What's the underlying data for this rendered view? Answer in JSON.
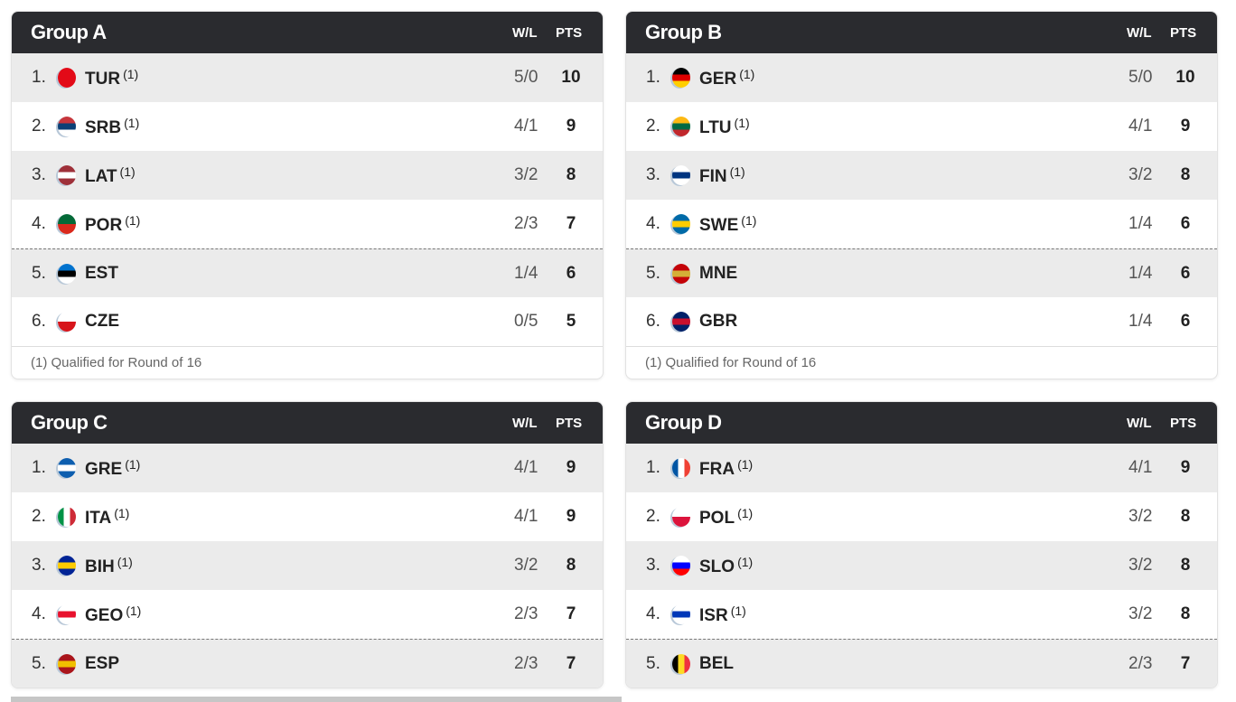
{
  "groups": [
    {
      "title": "Group A",
      "wl_header": "W/L",
      "pts_header": "PTS",
      "footnote": "(1)  Qualified for Round of 16",
      "cut_after": 4,
      "rows": [
        {
          "rank": "1.",
          "code": "TUR",
          "mark": "(1)",
          "wl": "5/0",
          "pts": "10",
          "flag": [
            "#e30a17",
            "#e30a17"
          ]
        },
        {
          "rank": "2.",
          "code": "SRB",
          "mark": "(1)",
          "wl": "4/1",
          "pts": "9",
          "flag": [
            "#c6363c",
            "#0c4076",
            "#fff"
          ]
        },
        {
          "rank": "3.",
          "code": "LAT",
          "mark": "(1)",
          "wl": "3/2",
          "pts": "8",
          "flag": [
            "#9e3039",
            "#fff",
            "#9e3039"
          ]
        },
        {
          "rank": "4.",
          "code": "POR",
          "mark": "(1)",
          "wl": "2/3",
          "pts": "7",
          "flag": [
            "#046a38",
            "#da291c"
          ]
        },
        {
          "rank": "5.",
          "code": "EST",
          "mark": "",
          "wl": "1/4",
          "pts": "6",
          "flag": [
            "#0072ce",
            "#000",
            "#fff"
          ]
        },
        {
          "rank": "6.",
          "code": "CZE",
          "mark": "",
          "wl": "0/5",
          "pts": "5",
          "flag": [
            "#fff",
            "#d7141a"
          ]
        }
      ]
    },
    {
      "title": "Group B",
      "wl_header": "W/L",
      "pts_header": "PTS",
      "footnote": "(1)  Qualified for Round of 16",
      "cut_after": 4,
      "rows": [
        {
          "rank": "1.",
          "code": "GER",
          "mark": "(1)",
          "wl": "5/0",
          "pts": "10",
          "flag": [
            "#000",
            "#dd0000",
            "#ffce00"
          ]
        },
        {
          "rank": "2.",
          "code": "LTU",
          "mark": "(1)",
          "wl": "4/1",
          "pts": "9",
          "flag": [
            "#fdb913",
            "#006a44",
            "#c1272d"
          ]
        },
        {
          "rank": "3.",
          "code": "FIN",
          "mark": "(1)",
          "wl": "3/2",
          "pts": "8",
          "flag": [
            "#fff",
            "#003580",
            "#fff"
          ]
        },
        {
          "rank": "4.",
          "code": "SWE",
          "mark": "(1)",
          "wl": "1/4",
          "pts": "6",
          "flag": [
            "#006aa7",
            "#fecc00",
            "#006aa7"
          ]
        },
        {
          "rank": "5.",
          "code": "MNE",
          "mark": "",
          "wl": "1/4",
          "pts": "6",
          "flag": [
            "#c40308",
            "#d4af37",
            "#c40308"
          ]
        },
        {
          "rank": "6.",
          "code": "GBR",
          "mark": "",
          "wl": "1/4",
          "pts": "6",
          "flag": [
            "#012169",
            "#c8102e",
            "#012169"
          ]
        }
      ]
    },
    {
      "title": "Group C",
      "wl_header": "W/L",
      "pts_header": "PTS",
      "cut_after": 4,
      "rows": [
        {
          "rank": "1.",
          "code": "GRE",
          "mark": "(1)",
          "wl": "4/1",
          "pts": "9",
          "flag": [
            "#0d5eaf",
            "#fff",
            "#0d5eaf"
          ]
        },
        {
          "rank": "2.",
          "code": "ITA",
          "mark": "(1)",
          "wl": "4/1",
          "pts": "9",
          "flag": [
            "#009246",
            "#fff",
            "#ce2b37"
          ],
          "v": true
        },
        {
          "rank": "3.",
          "code": "BIH",
          "mark": "(1)",
          "wl": "3/2",
          "pts": "8",
          "flag": [
            "#002395",
            "#fecb00",
            "#002395"
          ]
        },
        {
          "rank": "4.",
          "code": "GEO",
          "mark": "(1)",
          "wl": "2/3",
          "pts": "7",
          "flag": [
            "#fff",
            "#e8112d",
            "#fff"
          ]
        },
        {
          "rank": "5.",
          "code": "ESP",
          "mark": "",
          "wl": "2/3",
          "pts": "7",
          "flag": [
            "#aa151b",
            "#f1bf00",
            "#aa151b"
          ]
        }
      ]
    },
    {
      "title": "Group D",
      "wl_header": "W/L",
      "pts_header": "PTS",
      "cut_after": 4,
      "rows": [
        {
          "rank": "1.",
          "code": "FRA",
          "mark": "(1)",
          "wl": "4/1",
          "pts": "9",
          "flag": [
            "#0055a4",
            "#fff",
            "#ef4135"
          ],
          "v": true
        },
        {
          "rank": "2.",
          "code": "POL",
          "mark": "(1)",
          "wl": "3/2",
          "pts": "8",
          "flag": [
            "#fff",
            "#dc143c"
          ]
        },
        {
          "rank": "3.",
          "code": "SLO",
          "mark": "(1)",
          "wl": "3/2",
          "pts": "8",
          "flag": [
            "#fff",
            "#0000ff",
            "#ff0000"
          ]
        },
        {
          "rank": "4.",
          "code": "ISR",
          "mark": "(1)",
          "wl": "3/2",
          "pts": "8",
          "flag": [
            "#fff",
            "#0038b8",
            "#fff"
          ]
        },
        {
          "rank": "5.",
          "code": "BEL",
          "mark": "",
          "wl": "2/3",
          "pts": "7",
          "flag": [
            "#000",
            "#fdda24",
            "#ef3340"
          ],
          "v": true
        }
      ]
    }
  ]
}
